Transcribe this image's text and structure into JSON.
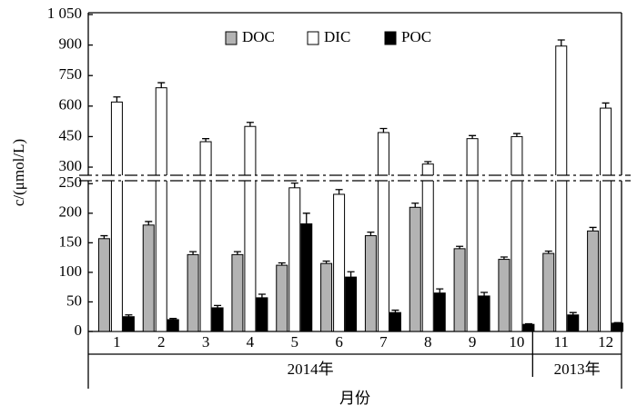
{
  "chart_data": {
    "type": "bar",
    "ylabel": "c/(μmol/L)",
    "xlabel": "月份",
    "categories": [
      "1",
      "2",
      "3",
      "4",
      "5",
      "6",
      "7",
      "8",
      "9",
      "10",
      "11",
      "12"
    ],
    "groups": [
      "2014年",
      "2013年"
    ],
    "series": [
      {
        "name": "DOC",
        "color": "#b3b3b3",
        "values": [
          157,
          180,
          130,
          130,
          112,
          115,
          162,
          210,
          140,
          122,
          132,
          170
        ],
        "errors": [
          5,
          6,
          5,
          5,
          4,
          4,
          6,
          7,
          4,
          4,
          4,
          6
        ]
      },
      {
        "name": "DIC",
        "color": "#ffffff",
        "values": [
          620,
          690,
          425,
          500,
          243,
          232,
          470,
          315,
          440,
          450,
          895,
          590
        ],
        "errors": [
          25,
          25,
          15,
          20,
          8,
          8,
          20,
          12,
          15,
          15,
          30,
          25
        ]
      },
      {
        "name": "POC",
        "color": "#000000",
        "values": [
          25,
          20,
          40,
          57,
          182,
          92,
          32,
          65,
          60,
          12,
          28,
          14
        ],
        "errors": [
          3,
          2,
          4,
          6,
          18,
          9,
          4,
          7,
          6,
          1,
          4,
          1
        ]
      }
    ],
    "ylim": [
      0,
      1050
    ],
    "axis_break": [
      255,
      260
    ],
    "yticks": [
      0,
      50,
      100,
      150,
      200,
      250,
      300,
      450,
      600,
      750,
      900,
      {
        "value": 1050,
        "label": "1 050"
      }
    ],
    "legend": "top"
  }
}
